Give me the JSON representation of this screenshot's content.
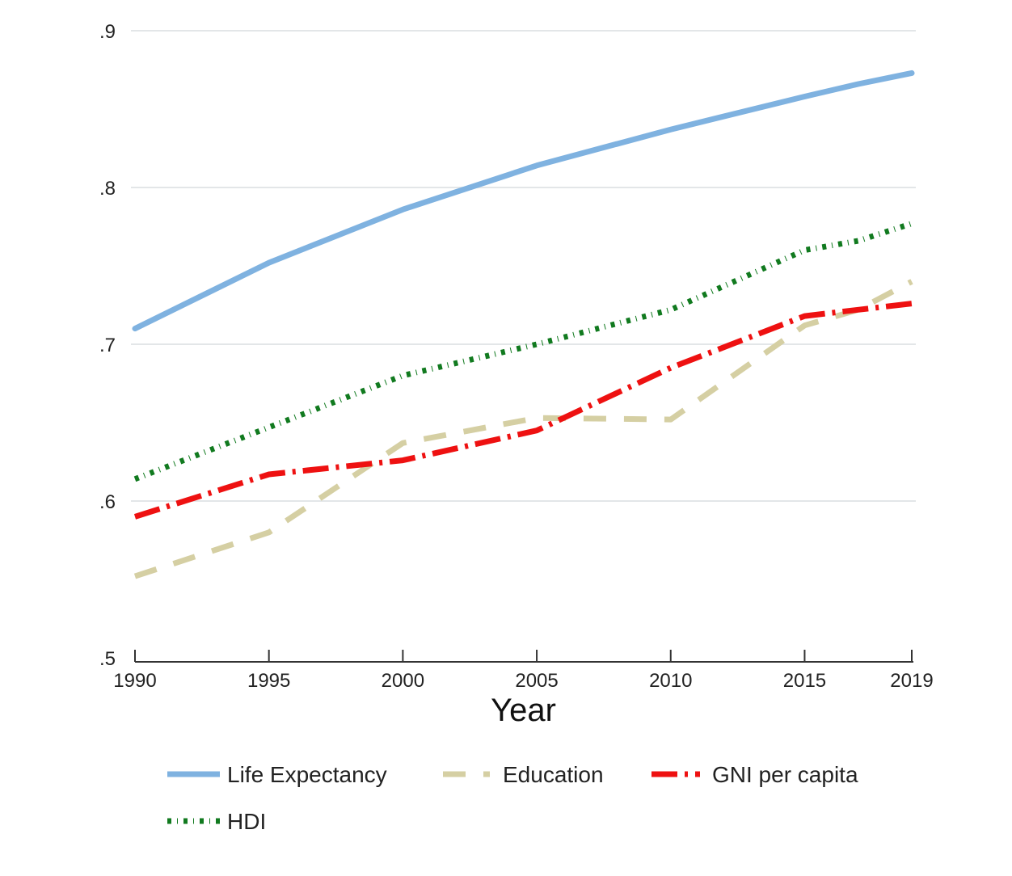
{
  "chart_data": {
    "type": "line",
    "xlabel": "Year",
    "ylabel": "",
    "xlim": [
      1990,
      2019
    ],
    "ylim": [
      0.5,
      0.9
    ],
    "x_ticks": [
      1990,
      1995,
      2000,
      2005,
      2010,
      2015,
      2019
    ],
    "x_tick_labels": [
      "1990",
      "1995",
      "2000",
      "2005",
      "2010",
      "2015",
      "2019"
    ],
    "y_ticks": [
      0.5,
      0.6,
      0.7,
      0.8,
      0.9
    ],
    "y_tick_labels": [
      ".5",
      ".6",
      ".7",
      ".8",
      ".9"
    ],
    "grid": "horizontal",
    "legend_position": "bottom",
    "x": [
      1990,
      1995,
      2000,
      2005,
      2010,
      2015,
      2017,
      2019
    ],
    "series": [
      {
        "name": "Life Expectancy",
        "color": "#7fb2e0",
        "style": "solid",
        "values": [
          0.71,
          0.752,
          0.786,
          0.814,
          0.837,
          0.858,
          0.866,
          0.873
        ]
      },
      {
        "name": "Education",
        "color": "#d5cfa3",
        "style": "dash",
        "values": [
          0.552,
          0.58,
          0.637,
          0.653,
          0.652,
          0.712,
          0.722,
          0.74
        ]
      },
      {
        "name": "GNI per capita",
        "color": "#ee1111",
        "style": "dashdot",
        "values": [
          0.59,
          0.617,
          0.626,
          0.645,
          0.685,
          0.718,
          0.722,
          0.726
        ]
      },
      {
        "name": "HDI",
        "color": "#117a1f",
        "style": "dotdash",
        "values": [
          0.614,
          0.647,
          0.68,
          0.7,
          0.722,
          0.76,
          0.766,
          0.777
        ]
      }
    ]
  }
}
